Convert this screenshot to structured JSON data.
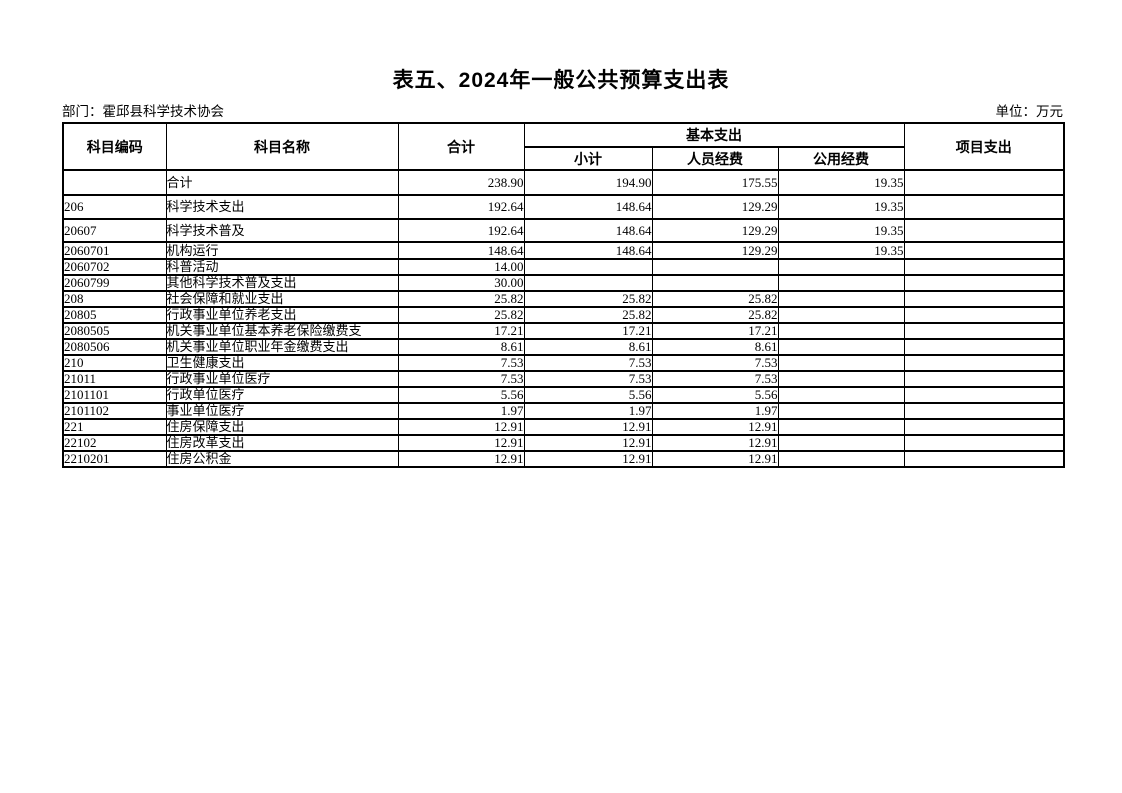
{
  "page": {
    "title": "表五、2024年一般公共预算支出表",
    "department": "部门：霍邱县科学技术协会",
    "unit": "单位：万元"
  },
  "table": {
    "headers": {
      "code": "科目编码",
      "name": "科目名称",
      "total": "合计",
      "basic_group": "基本支出",
      "basic_subtotal": "小计",
      "personnel": "人员经费",
      "public": "公用经费",
      "project": "项目支出"
    },
    "rows": [
      {
        "code": "",
        "level": 0,
        "name": "合计",
        "total": "238.90",
        "subtotal": "194.90",
        "personnel": "175.55",
        "public": "19.35",
        "project": ""
      },
      {
        "code": "206",
        "level": 0,
        "name": "科学技术支出",
        "total": "192.64",
        "subtotal": "148.64",
        "personnel": "129.29",
        "public": "19.35",
        "project": ""
      },
      {
        "code": "20607",
        "level": 1,
        "name": "科学技术普及",
        "total": "192.64",
        "subtotal": "148.64",
        "personnel": "129.29",
        "public": "19.35",
        "project": ""
      },
      {
        "code": "2060701",
        "level": 2,
        "name": "机构运行",
        "total": "148.64",
        "subtotal": "148.64",
        "personnel": "129.29",
        "public": "19.35",
        "project": ""
      },
      {
        "code": "2060702",
        "level": 2,
        "name": "科普活动",
        "total": "14.00",
        "subtotal": "",
        "personnel": "",
        "public": "",
        "project": ""
      },
      {
        "code": "2060799",
        "level": 2,
        "name": "其他科学技术普及支出",
        "total": "30.00",
        "subtotal": "",
        "personnel": "",
        "public": "",
        "project": ""
      },
      {
        "code": "208",
        "level": 0,
        "name": "社会保障和就业支出",
        "total": "25.82",
        "subtotal": "25.82",
        "personnel": "25.82",
        "public": "",
        "project": ""
      },
      {
        "code": "20805",
        "level": 1,
        "name": "行政事业单位养老支出",
        "total": "25.82",
        "subtotal": "25.82",
        "personnel": "25.82",
        "public": "",
        "project": ""
      },
      {
        "code": "2080505",
        "level": 2,
        "name": "机关事业单位基本养老保险缴费支",
        "total": "17.21",
        "subtotal": "17.21",
        "personnel": "17.21",
        "public": "",
        "project": ""
      },
      {
        "code": "2080506",
        "level": 2,
        "name": "机关事业单位职业年金缴费支出",
        "total": "8.61",
        "subtotal": "8.61",
        "personnel": "8.61",
        "public": "",
        "project": ""
      },
      {
        "code": "210",
        "level": 0,
        "name": "卫生健康支出",
        "total": "7.53",
        "subtotal": "7.53",
        "personnel": "7.53",
        "public": "",
        "project": ""
      },
      {
        "code": "21011",
        "level": 1,
        "name": "行政事业单位医疗",
        "total": "7.53",
        "subtotal": "7.53",
        "personnel": "7.53",
        "public": "",
        "project": ""
      },
      {
        "code": "2101101",
        "level": 2,
        "name": "行政单位医疗",
        "total": "5.56",
        "subtotal": "5.56",
        "personnel": "5.56",
        "public": "",
        "project": ""
      },
      {
        "code": "2101102",
        "level": 2,
        "name": "事业单位医疗",
        "total": "1.97",
        "subtotal": "1.97",
        "personnel": "1.97",
        "public": "",
        "project": ""
      },
      {
        "code": "221",
        "level": 0,
        "name": "住房保障支出",
        "total": "12.91",
        "subtotal": "12.91",
        "personnel": "12.91",
        "public": "",
        "project": ""
      },
      {
        "code": "22102",
        "level": 1,
        "name": "住房改革支出",
        "total": "12.91",
        "subtotal": "12.91",
        "personnel": "12.91",
        "public": "",
        "project": ""
      },
      {
        "code": "2210201",
        "level": 2,
        "name": "住房公积金",
        "total": "12.91",
        "subtotal": "12.91",
        "personnel": "12.91",
        "public": "",
        "project": ""
      }
    ]
  }
}
